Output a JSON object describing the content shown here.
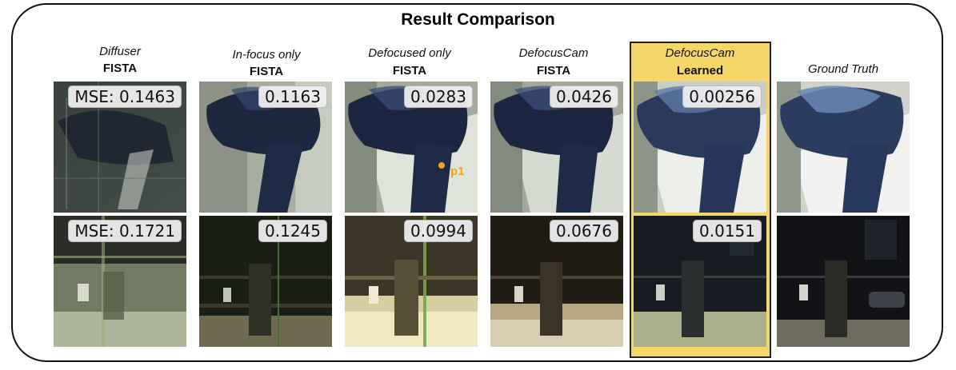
{
  "title": "Result Comparison",
  "columns": [
    {
      "method": "Diffuser",
      "algo": "FISTA",
      "mse_top": "MSE: 0.1463",
      "mse_bottom": "MSE: 0.1721"
    },
    {
      "method": "In-focus only",
      "algo": "FISTA",
      "mse_top": "0.1163",
      "mse_bottom": "0.1245"
    },
    {
      "method": "Defocused only",
      "algo": "FISTA",
      "mse_top": "0.0283",
      "mse_bottom": "0.0994"
    },
    {
      "method": "DefocusCam",
      "algo": "FISTA",
      "mse_top": "0.0426",
      "mse_bottom": "0.0676"
    },
    {
      "method": "DefocusCam",
      "algo": "Learned",
      "mse_top": "0.00256",
      "mse_bottom": "0.0151"
    },
    {
      "method": "Ground Truth",
      "algo": "",
      "mse_top": "",
      "mse_bottom": ""
    }
  ],
  "point_label": "p1",
  "colors": {
    "highlight": "#f4d768",
    "point": "#f5a418"
  }
}
